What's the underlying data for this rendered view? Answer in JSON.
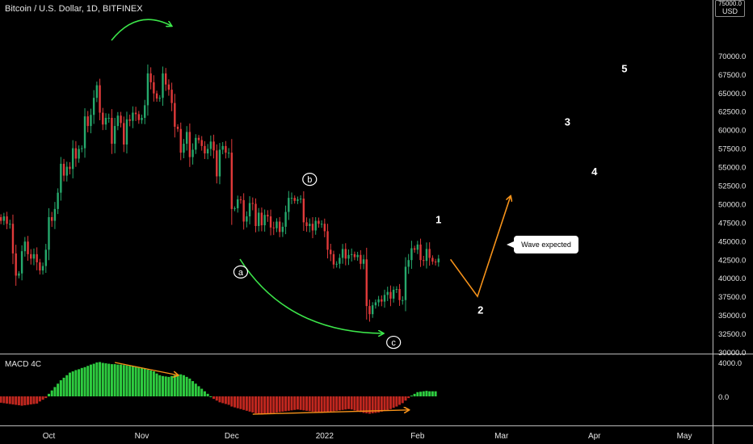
{
  "header": {
    "symbol_title": "Bitcoin / U.S. Dollar, 1D, BITFINEX",
    "currency_badge": "USD",
    "currency_badge_top": "75000.0"
  },
  "macd": {
    "title": "MACD 4C"
  },
  "annotations": {
    "callout": "Wave expected",
    "abc_labels": [
      "a",
      "b",
      "c"
    ],
    "wave_labels": [
      "1",
      "2",
      "3",
      "4",
      "5"
    ]
  },
  "colors": {
    "background": "#000000",
    "up_candle": "#26a96c",
    "down_candle": "#e03a3a",
    "arrow_green": "#3ce64a",
    "arrow_orange": "#f7931a",
    "macd_up": "#2ecc40",
    "macd_down": "#c0271f"
  },
  "chart_data": [
    {
      "type": "candlestick",
      "title": "Bitcoin / U.S. Dollar, 1D, BITFINEX",
      "ylabel": "USD",
      "ylim": [
        30000,
        75000
      ],
      "y_ticks": [
        "30000.0",
        "32500.0",
        "35000.0",
        "37500.0",
        "40000.0",
        "42500.0",
        "45000.0",
        "47500.0",
        "50000.0",
        "52500.0",
        "55000.0",
        "57500.0",
        "60000.0",
        "62500.0",
        "65000.0",
        "67500.0",
        "70000.0"
      ],
      "x_ticks": [
        "Oct",
        "Nov",
        "Dec",
        "2022",
        "Feb",
        "Mar",
        "Apr",
        "May"
      ],
      "close_series": {
        "start": "2021-09-01",
        "interval_days": 1,
        "values": [
          47100,
          48800,
          49900,
          49900,
          51700,
          52700,
          46900,
          46100,
          46400,
          44900,
          45200,
          44100,
          47100,
          48200,
          47700,
          48300,
          47300,
          47300,
          43300,
          40300,
          40600,
          43600,
          44900,
          43200,
          42600,
          43200,
          42100,
          41000,
          41600,
          43800,
          48200,
          47700,
          49300,
          51500,
          55400,
          53800,
          55000,
          54700,
          57500,
          56100,
          57400,
          57500,
          61800,
          60500,
          62000,
          64300,
          66000,
          62300,
          60700,
          61600,
          61600,
          58100,
          60500,
          61900,
          60900,
          58000,
          61400,
          61200,
          62300,
          62100,
          61300,
          61600,
          63300,
          67600,
          66400,
          64900,
          64200,
          64300,
          67600,
          66100,
          65400,
          63600,
          60400,
          60100,
          56900,
          58100,
          59700,
          56300,
          57300,
          58900,
          58600,
          57800,
          56800,
          57400,
          58400,
          57200,
          53700,
          57300,
          57800,
          56900,
          56900,
          49300,
          49400,
          50600,
          50500,
          47600,
          48300,
          50100,
          50000,
          47000,
          48800,
          47100,
          48500,
          48300,
          46800,
          46700,
          47600,
          46200,
          46900,
          48900,
          50800,
          50800,
          50400,
          50600,
          50700,
          47500,
          47000,
          47300,
          46400,
          47700,
          47300,
          47300,
          46300,
          43800,
          43200,
          41800,
          41900,
          42700,
          43900,
          42600,
          43100,
          43200,
          42800,
          43100,
          41900,
          42500,
          36200,
          35100,
          36300,
          36700,
          37100,
          36800,
          37700,
          38100,
          37200,
          38400,
          38500,
          37000,
          37000,
          41500,
          42400,
          44000,
          43800,
          44500,
          42400,
          42300,
          43900,
          42700,
          42200,
          42100,
          42600
        ],
        "note": "daily closes"
      },
      "projection": {
        "type": "line",
        "points": [
          [
            "2022-02-12",
            42500
          ],
          [
            "2022-02-21",
            37500
          ],
          [
            "2022-03-04",
            51000
          ]
        ]
      },
      "annotations": [
        {
          "label": "a",
          "date": "2021-12-04",
          "price": 40800
        },
        {
          "label": "b",
          "date": "2021-12-27",
          "price": 53300
        },
        {
          "label": "c",
          "date": "2022-01-24",
          "price": 31300
        },
        {
          "label": "1",
          "date": "2022-02-08",
          "price": 47900
        },
        {
          "label": "2",
          "date": "2022-02-22",
          "price": 35700
        },
        {
          "label": "3",
          "date": "2022-03-23",
          "price": 61100
        },
        {
          "label": "4",
          "date": "2022-04-01",
          "price": 54400
        },
        {
          "label": "5",
          "date": "2022-04-11",
          "price": 68300
        },
        {
          "label": "Wave expected",
          "date": "2022-03-07",
          "price": 43000
        }
      ]
    },
    {
      "type": "bar",
      "title": "MACD 4C",
      "ylim": [
        -1500,
        4500
      ],
      "y_ticks": [
        "4000.0",
        "0.0"
      ],
      "zero_line": 0,
      "histogram": {
        "start": "2021-09-01",
        "interval_days": 1,
        "values": [
          400,
          380,
          360,
          350,
          340,
          320,
          260,
          180,
          100,
          0,
          -200,
          -400,
          -600,
          -700,
          -750,
          -800,
          -850,
          -900,
          -950,
          -1000,
          -1050,
          -1100,
          -1050,
          -1000,
          -950,
          -900,
          -850,
          -600,
          -400,
          -200,
          300,
          700,
          1100,
          1500,
          1900,
          2200,
          2500,
          2800,
          2950,
          3100,
          3200,
          3350,
          3450,
          3600,
          3750,
          3850,
          4000,
          4050,
          3950,
          3900,
          3850,
          3800,
          3800,
          3750,
          3750,
          3700,
          3650,
          3600,
          3550,
          3500,
          3450,
          3350,
          3300,
          3150,
          3050,
          2950,
          2700,
          2500,
          2400,
          2350,
          2300,
          2400,
          2500,
          2600,
          2600,
          2500,
          2300,
          2100,
          1800,
          1500,
          1200,
          900,
          600,
          300,
          0,
          -300,
          -500,
          -700,
          -800,
          -900,
          -1000,
          -1200,
          -1300,
          -1400,
          -1500,
          -1600,
          -1700,
          -1800,
          -1900,
          -2000,
          -2100,
          -2150,
          -2100,
          -2050,
          -2000,
          -1950,
          -1900,
          -1850,
          -1800,
          -1750,
          -1700,
          -1650,
          -1600,
          -1550,
          -1600,
          -1650,
          -1700,
          -1750,
          -1800,
          -1850,
          -1900,
          -1950,
          -1900,
          -1850,
          -1800,
          -1750,
          -1700,
          -1650,
          -1600,
          -1550,
          -1500,
          -1550,
          -1650,
          -1750,
          -1850,
          -1950,
          -2000,
          -2050,
          -2000,
          -1950,
          -1900,
          -1800,
          -1700,
          -1600,
          -1500,
          -1350,
          -1200,
          -1000,
          -800,
          -500,
          -200,
          100,
          300,
          500,
          550,
          600,
          650,
          600,
          600,
          600
        ]
      },
      "divergence_arrows": [
        {
          "from": [
            "2021-10-23",
            4000
          ],
          "to": [
            "2021-11-13",
            2500
          ]
        },
        {
          "from": [
            "2021-12-08",
            -2100
          ],
          "to": [
            "2022-01-29",
            -1600
          ]
        }
      ]
    }
  ]
}
